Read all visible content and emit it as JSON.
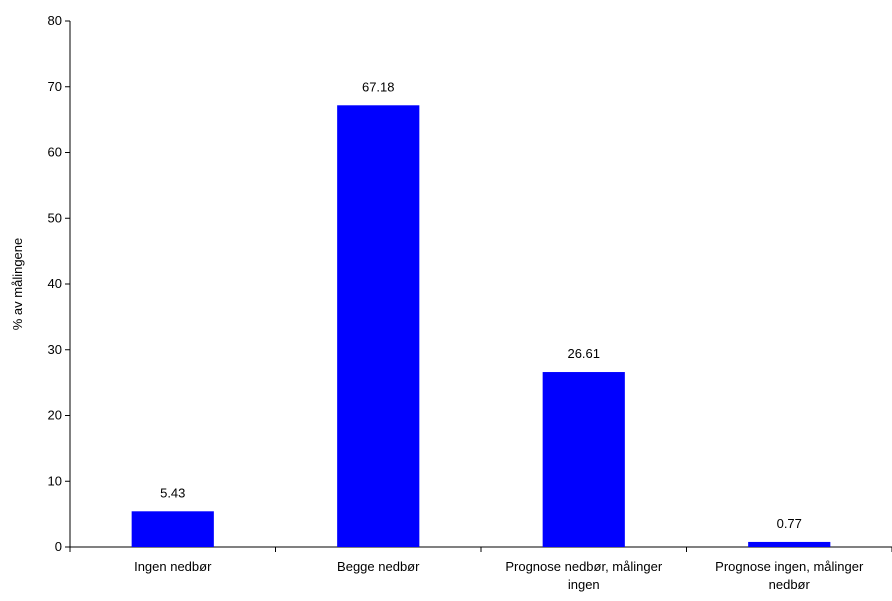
{
  "chart_data": {
    "type": "bar",
    "title": "",
    "xlabel": "",
    "ylabel": "% av målingene",
    "ylim": [
      0,
      80
    ],
    "yticks": [
      0,
      10,
      20,
      30,
      40,
      50,
      60,
      70,
      80
    ],
    "categories": [
      [
        "Ingen nedbør"
      ],
      [
        "Begge nedbør"
      ],
      [
        "Prognose nedbør, målinger",
        "ingen"
      ],
      [
        "Prognose ingen, målinger",
        "nedbør"
      ]
    ],
    "values": [
      5.43,
      67.18,
      26.61,
      0.77
    ],
    "data_labels": [
      "5.43",
      "67.18",
      "26.61",
      "0.77"
    ],
    "bar_color": "#0000ff",
    "legend": "none",
    "grid": false
  }
}
